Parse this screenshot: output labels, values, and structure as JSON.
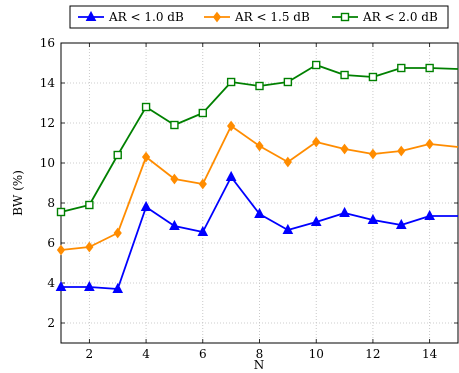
{
  "chart_data": {
    "type": "line",
    "xlabel": "N",
    "ylabel": "BW (%)",
    "xlim": [
      1,
      15
    ],
    "ylim": [
      1,
      16
    ],
    "xticks": [
      2,
      4,
      6,
      8,
      10,
      12,
      14
    ],
    "yticks": [
      2,
      4,
      6,
      8,
      10,
      12,
      14,
      16
    ],
    "grid": true,
    "legend_position": "top",
    "x": [
      1,
      2,
      3,
      4,
      5,
      6,
      7,
      8,
      9,
      10,
      11,
      12,
      13,
      14,
      15
    ],
    "series": [
      {
        "name": "AR < 1.0 dB",
        "color": "#0000ff",
        "marker": "triangle",
        "values": [
          3.8,
          3.8,
          3.7,
          7.8,
          6.85,
          6.55,
          9.3,
          7.45,
          6.65,
          7.05,
          7.5,
          7.15,
          6.9,
          7.35,
          7.35
        ]
      },
      {
        "name": "AR < 1.5 dB",
        "color": "#ff8c00",
        "marker": "diamond",
        "values": [
          5.65,
          5.8,
          6.5,
          10.3,
          9.2,
          8.95,
          11.85,
          10.85,
          10.05,
          11.05,
          10.7,
          10.45,
          10.6,
          10.95,
          10.8
        ]
      },
      {
        "name": "AR < 2.0 dB",
        "color": "#008000",
        "marker": "square",
        "values": [
          7.55,
          7.9,
          10.4,
          12.8,
          11.9,
          12.5,
          14.05,
          13.85,
          14.05,
          14.9,
          14.4,
          14.3,
          14.75,
          14.75,
          14.7
        ]
      }
    ]
  }
}
